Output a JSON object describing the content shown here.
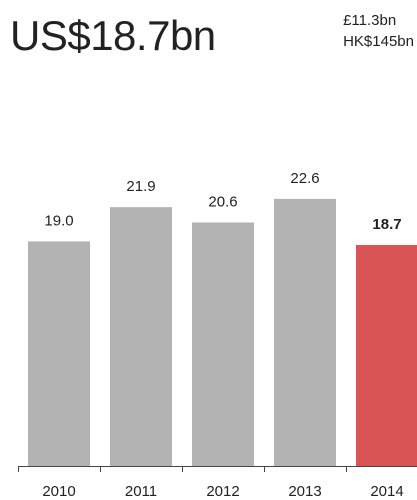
{
  "headline": "US$18.7bn",
  "equivalents": [
    "£11.3bn",
    "HK$145bn"
  ],
  "colors": {
    "bar": "#b3b3b3",
    "highlight": "#d95555",
    "axis": "#444444",
    "text": "#222222"
  },
  "chart_data": {
    "type": "bar",
    "categories": [
      "2010",
      "2011",
      "2012",
      "2013",
      "2014"
    ],
    "values": [
      19.0,
      21.9,
      20.6,
      22.6,
      18.7
    ],
    "value_labels": [
      "19.0",
      "21.9",
      "20.6",
      "22.6",
      "18.7"
    ],
    "highlight_index": 4,
    "ylim": [
      0,
      25
    ],
    "grid": false,
    "title": "",
    "xlabel": "",
    "ylabel": ""
  }
}
